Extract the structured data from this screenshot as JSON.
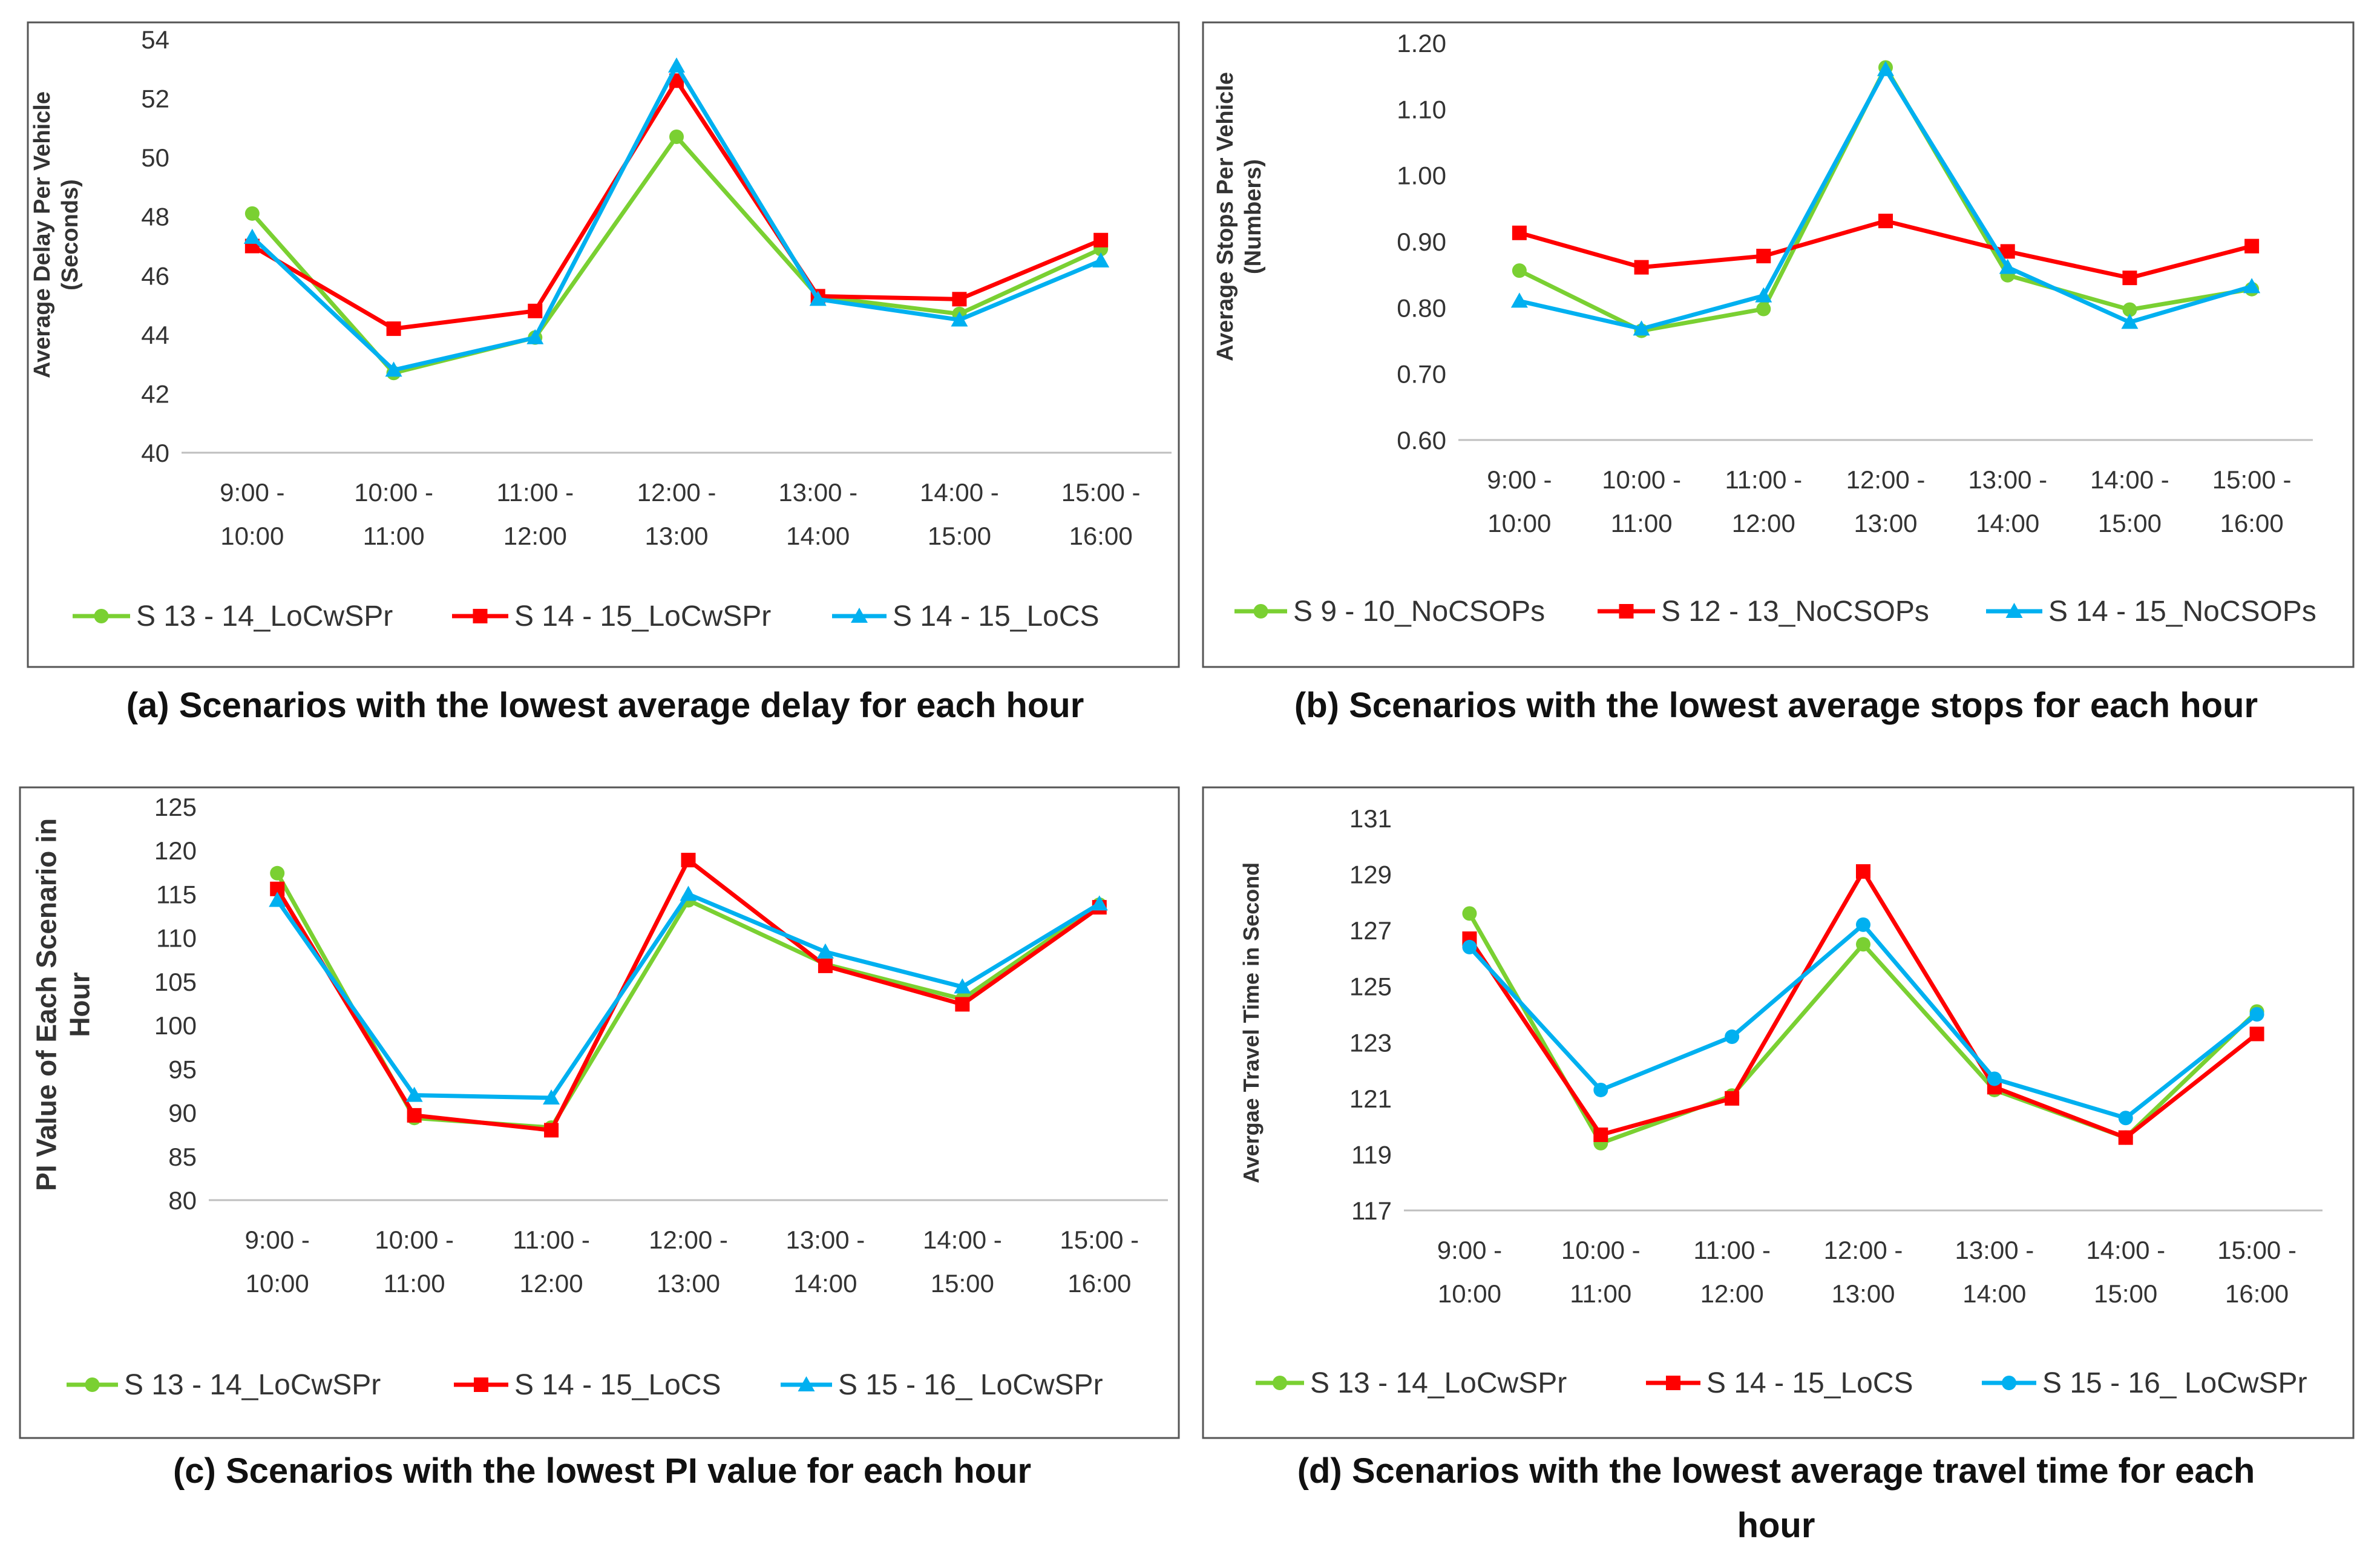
{
  "colors": {
    "green": "#7ad032",
    "red": "#ff0000",
    "blue": "#00b0f0",
    "grid": "#d9d9d9",
    "axis": "#bfbfbf",
    "text": "#333333",
    "frame": "#555555"
  },
  "chart_data": [
    {
      "id": "a",
      "type": "line",
      "caption": "(a) Scenarios with the lowest average delay for each hour",
      "ylabel_lines": [
        "Average Delay Per Vehicle",
        "(Seconds)"
      ],
      "categories": [
        [
          "9:00 -",
          "10:00"
        ],
        [
          "10:00 -",
          "11:00"
        ],
        [
          "11:00 -",
          "12:00"
        ],
        [
          "12:00 -",
          "13:00"
        ],
        [
          "13:00 -",
          "14:00"
        ],
        [
          "14:00 -",
          "15:00"
        ],
        [
          "15:00 -",
          "16:00"
        ]
      ],
      "ylim": [
        40,
        54
      ],
      "yticks": [
        40,
        42,
        44,
        46,
        48,
        50,
        52,
        54
      ],
      "tick_decimals": 0,
      "series": [
        {
          "name": "S 13 - 14_LoCwSPr",
          "color": "green",
          "marker": "circle",
          "values": [
            48.1,
            42.7,
            43.9,
            50.7,
            45.3,
            44.7,
            46.9
          ]
        },
        {
          "name": "S 14 - 15_LoCwSPr",
          "color": "red",
          "marker": "square",
          "values": [
            47.0,
            44.2,
            44.8,
            52.6,
            45.3,
            45.2,
            47.2
          ]
        },
        {
          "name": "S 14 - 15_LoCS",
          "color": "blue",
          "marker": "triangle",
          "values": [
            47.3,
            42.8,
            43.9,
            53.1,
            45.2,
            44.5,
            46.5
          ]
        }
      ]
    },
    {
      "id": "b",
      "type": "line",
      "caption": "(b) Scenarios with the lowest average stops for each hour",
      "ylabel_lines": [
        "Average Stops Per Vehicle",
        "(Numbers)"
      ],
      "categories": [
        [
          "9:00 -",
          "10:00"
        ],
        [
          "10:00 -",
          "11:00"
        ],
        [
          "11:00 -",
          "12:00"
        ],
        [
          "12:00 -",
          "13:00"
        ],
        [
          "13:00 -",
          "14:00"
        ],
        [
          "14:00 -",
          "15:00"
        ],
        [
          "15:00 -",
          "16:00"
        ]
      ],
      "ylim": [
        0.6,
        1.2
      ],
      "yticks": [
        0.6,
        0.7,
        0.8,
        0.9,
        1.0,
        1.1,
        1.2
      ],
      "tick_decimals": 2,
      "series": [
        {
          "name": "S 9 - 10_NoCSOPs",
          "color": "green",
          "marker": "circle",
          "values": [
            0.856,
            0.765,
            0.798,
            1.163,
            0.849,
            0.797,
            0.828
          ]
        },
        {
          "name": "S 12 - 13_NoCSOPs",
          "color": "red",
          "marker": "square",
          "values": [
            0.913,
            0.861,
            0.878,
            0.931,
            0.885,
            0.845,
            0.893
          ]
        },
        {
          "name": "S 14 - 15_NoCSOPs",
          "color": "blue",
          "marker": "triangle",
          "values": [
            0.81,
            0.768,
            0.818,
            1.16,
            0.861,
            0.778,
            0.832
          ]
        }
      ]
    },
    {
      "id": "c",
      "type": "line",
      "caption": "(c) Scenarios with the lowest PI value for each hour",
      "ylabel_lines": [
        "PI Value of Each Scenario in",
        "Hour"
      ],
      "categories": [
        [
          "9:00 -",
          "10:00"
        ],
        [
          "10:00 -",
          "11:00"
        ],
        [
          "11:00 -",
          "12:00"
        ],
        [
          "12:00 -",
          "13:00"
        ],
        [
          "13:00 -",
          "14:00"
        ],
        [
          "14:00 -",
          "15:00"
        ],
        [
          "15:00 -",
          "16:00"
        ]
      ],
      "ylim": [
        80,
        125
      ],
      "yticks": [
        80,
        85,
        90,
        95,
        100,
        105,
        110,
        115,
        120,
        125
      ],
      "tick_decimals": 0,
      "series": [
        {
          "name": "S 13 - 14_LoCwSPr",
          "color": "green",
          "marker": "circle",
          "values": [
            117.4,
            89.4,
            88.3,
            114.3,
            107.0,
            103.0,
            113.8
          ]
        },
        {
          "name": "S 14 - 15_LoCS",
          "color": "red",
          "marker": "square",
          "values": [
            115.6,
            89.7,
            88.0,
            118.9,
            106.8,
            102.4,
            113.5
          ]
        },
        {
          "name": "S 15 - 16_ LoCwSPr",
          "color": "blue",
          "marker": "triangle",
          "values": [
            114.3,
            92.0,
            91.7,
            115.0,
            108.4,
            104.4,
            113.9
          ]
        }
      ]
    },
    {
      "id": "d",
      "type": "line",
      "caption_lines": [
        "(d) Scenarios with the lowest average travel time for each",
        "hour"
      ],
      "ylabel_lines": [
        "Avergae Travel Time in Second"
      ],
      "categories": [
        [
          "9:00 -",
          "10:00"
        ],
        [
          "10:00 -",
          "11:00"
        ],
        [
          "11:00 -",
          "12:00"
        ],
        [
          "12:00 -",
          "13:00"
        ],
        [
          "13:00 -",
          "14:00"
        ],
        [
          "14:00 -",
          "15:00"
        ],
        [
          "15:00 -",
          "16:00"
        ]
      ],
      "ylim": [
        117,
        131
      ],
      "yticks": [
        117,
        119,
        121,
        123,
        125,
        127,
        129,
        131
      ],
      "tick_decimals": 0,
      "series": [
        {
          "name": "S 13 - 14_LoCwSPr",
          "color": "green",
          "marker": "circle",
          "values": [
            127.6,
            119.4,
            121.1,
            126.5,
            121.3,
            119.6,
            124.1
          ]
        },
        {
          "name": "S 14 - 15_LoCS",
          "color": "red",
          "marker": "square",
          "values": [
            126.7,
            119.7,
            121.0,
            129.1,
            121.4,
            119.6,
            123.3
          ]
        },
        {
          "name": "S 15 - 16_ LoCwSPr",
          "color": "blue",
          "marker": "circle",
          "values": [
            126.4,
            121.3,
            123.2,
            127.2,
            121.7,
            120.3,
            124.0
          ]
        }
      ]
    }
  ]
}
